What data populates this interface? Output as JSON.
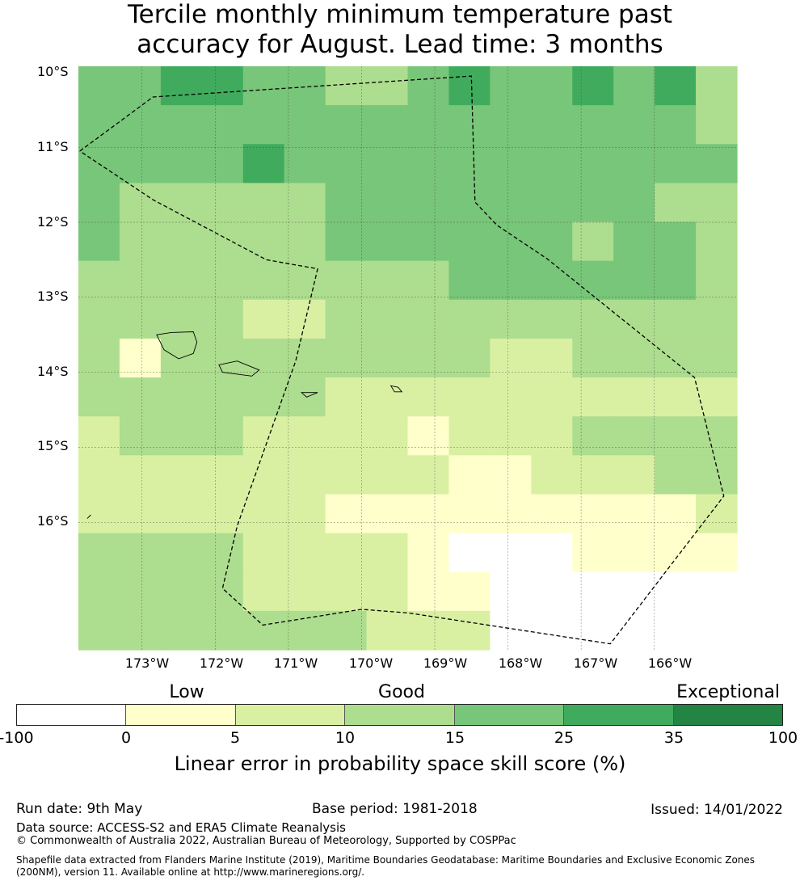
{
  "title": {
    "line1": "Tercile monthly minimum temperature past",
    "line2": "accuracy for August. Lead time: 3 months"
  },
  "map": {
    "lat_labels": [
      "10°S",
      "11°S",
      "12°S",
      "13°S",
      "14°S",
      "15°S",
      "16°S"
    ],
    "lon_labels": [
      "173°W",
      "172°W",
      "171°W",
      "170°W",
      "169°W",
      "168°W",
      "167°W",
      "166°W"
    ],
    "grid_skill_classes": [
      [
        4,
        4,
        5,
        5,
        4,
        4,
        3,
        3,
        4,
        5,
        4,
        4,
        5,
        4,
        5,
        3
      ],
      [
        4,
        4,
        4,
        4,
        4,
        4,
        4,
        4,
        4,
        4,
        4,
        4,
        4,
        4,
        4,
        3
      ],
      [
        4,
        4,
        4,
        4,
        5,
        4,
        4,
        4,
        4,
        4,
        4,
        4,
        4,
        4,
        4,
        4
      ],
      [
        4,
        3,
        3,
        3,
        3,
        3,
        4,
        4,
        4,
        4,
        4,
        4,
        4,
        4,
        3,
        3
      ],
      [
        4,
        3,
        3,
        3,
        3,
        3,
        4,
        4,
        4,
        4,
        4,
        4,
        3,
        4,
        4,
        3
      ],
      [
        3,
        3,
        3,
        3,
        3,
        3,
        3,
        3,
        3,
        4,
        4,
        4,
        4,
        4,
        4,
        3
      ],
      [
        3,
        3,
        3,
        3,
        2,
        2,
        3,
        3,
        3,
        3,
        3,
        3,
        3,
        3,
        3,
        3
      ],
      [
        3,
        1,
        3,
        3,
        3,
        3,
        3,
        3,
        3,
        3,
        2,
        2,
        3,
        3,
        3,
        3
      ],
      [
        3,
        3,
        3,
        3,
        3,
        3,
        2,
        2,
        2,
        2,
        2,
        2,
        2,
        2,
        2,
        2
      ],
      [
        2,
        3,
        3,
        3,
        2,
        2,
        2,
        2,
        1,
        2,
        2,
        2,
        3,
        3,
        3,
        3
      ],
      [
        2,
        2,
        2,
        2,
        2,
        2,
        2,
        2,
        2,
        1,
        1,
        2,
        2,
        2,
        3,
        3
      ],
      [
        2,
        2,
        2,
        2,
        2,
        2,
        1,
        1,
        1,
        1,
        1,
        1,
        1,
        1,
        1,
        2
      ],
      [
        3,
        3,
        3,
        3,
        2,
        2,
        2,
        2,
        1,
        0,
        0,
        0,
        1,
        1,
        1,
        1
      ],
      [
        3,
        3,
        3,
        3,
        2,
        2,
        2,
        2,
        1,
        1,
        0,
        0,
        0,
        0,
        0,
        0
      ],
      [
        3,
        3,
        3,
        3,
        3,
        3,
        3,
        2,
        2,
        2,
        0,
        0,
        0,
        0,
        0,
        0
      ]
    ],
    "grid_lon_range": [
      -173.87,
      -164.87
    ],
    "grid_lat_range": [
      -9.92,
      -17.7
    ],
    "boundary_lonlat": [
      [
        -173.85,
        -11.05
      ],
      [
        -172.85,
        -10.33
      ],
      [
        -168.5,
        -10.05
      ],
      [
        -168.45,
        -11.73
      ],
      [
        -168.15,
        -12.04
      ],
      [
        -167.46,
        -12.49
      ],
      [
        -165.45,
        -14.07
      ],
      [
        -165.05,
        -15.65
      ],
      [
        -166.6,
        -17.62
      ],
      [
        -169.35,
        -17.21
      ],
      [
        -170.0,
        -17.16
      ],
      [
        -171.35,
        -17.37
      ],
      [
        -171.9,
        -16.88
      ],
      [
        -171.7,
        -16.05
      ],
      [
        -170.9,
        -13.85
      ],
      [
        -170.6,
        -12.62
      ],
      [
        -171.3,
        -12.5
      ],
      [
        -172.85,
        -11.7
      ],
      [
        -173.85,
        -11.05
      ]
    ],
    "islands_lonlat": [
      [
        [
          -172.8,
          -13.5
        ],
        [
          -172.6,
          -13.47
        ],
        [
          -172.3,
          -13.46
        ],
        [
          -172.25,
          -13.6
        ],
        [
          -172.3,
          -13.75
        ],
        [
          -172.5,
          -13.82
        ],
        [
          -172.7,
          -13.7
        ]
      ],
      [
        [
          -171.95,
          -13.9
        ],
        [
          -171.7,
          -13.85
        ],
        [
          -171.4,
          -13.97
        ],
        [
          -171.5,
          -14.05
        ],
        [
          -171.9,
          -14.0
        ]
      ],
      [
        [
          -170.82,
          -14.27
        ],
        [
          -170.6,
          -14.27
        ],
        [
          -170.75,
          -14.33
        ]
      ],
      [
        [
          -169.6,
          -14.18
        ],
        [
          -169.5,
          -14.2
        ],
        [
          -169.45,
          -14.26
        ],
        [
          -169.55,
          -14.26
        ]
      ],
      [
        [
          -173.7,
          -15.9
        ],
        [
          -173.75,
          -15.95
        ]
      ]
    ]
  },
  "colorbar": {
    "categories": [
      "Low",
      "Good",
      "Exceptional"
    ],
    "ticks": [
      "-100",
      "0",
      "5",
      "10",
      "15",
      "25",
      "35",
      "100"
    ],
    "colors": [
      "#ffffff",
      "#ffffcc",
      "#d9f0a3",
      "#addd8e",
      "#78c679",
      "#41ab5d",
      "#238443"
    ],
    "label": "Linear error in probability space skill score (%)"
  },
  "footer": {
    "run_date": "Run date: 9th May",
    "base_period": "Base period: 1981-2018",
    "issued": "Issued: 14/01/2022",
    "data_source": "Data source: ACCESS-S2 and ERA5 Climate Reanalysis",
    "copyright": "© Commonwealth of Australia 2022, Australian Bureau of Meteorology, Supported by COSPPac",
    "shapefile_line1": "Shapefile data extracted from Flanders Marine Institute (2019), Maritime Boundaries Geodatabase: Maritime Boundaries and Exclusive Economic Zones",
    "shapefile_line2": "(200NM), version 11. Available online at http://www.marineregions.org/."
  }
}
